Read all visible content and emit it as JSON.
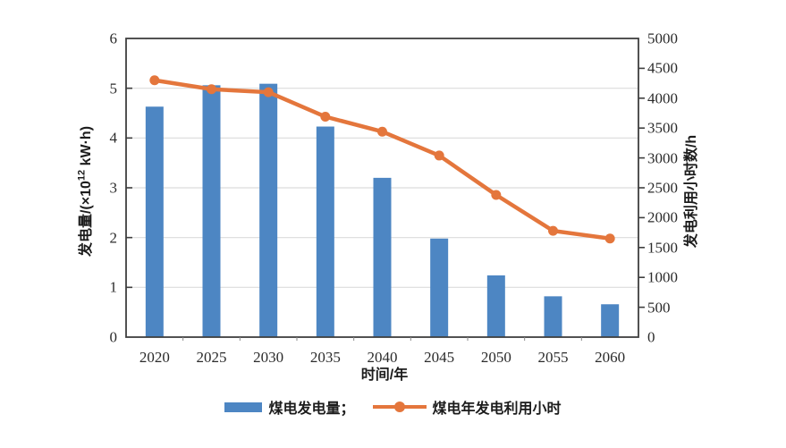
{
  "chart": {
    "y_left_title": {
      "prefix": "发电量/(×10",
      "sup": "12",
      "suffix": " kW·h)"
    },
    "y_right_title": "发电利用小时数/h",
    "x_title": "时间/年",
    "legend": {
      "bar_label": "煤电发电量；",
      "line_label": "煤电年发电利用小时"
    }
  },
  "colors": {
    "bar": "#4d86c3",
    "line": "#e4763c",
    "grid": "#dcdcdc",
    "axis": "#3f3f3f",
    "minor_tick": "#8a8a8a",
    "text": "#2b2b2b"
  },
  "chart_data": {
    "type": "combo",
    "categories": [
      "2020",
      "2025",
      "2030",
      "2035",
      "2040",
      "2045",
      "2050",
      "2055",
      "2060"
    ],
    "series": [
      {
        "name": "煤电发电量",
        "type": "bar",
        "axis": "left",
        "values": [
          4.63,
          5.06,
          5.09,
          4.23,
          3.2,
          1.98,
          1.24,
          0.82,
          0.66
        ]
      },
      {
        "name": "煤电年发电利用小时",
        "type": "line",
        "axis": "right",
        "values": [
          4300,
          4150,
          4100,
          3690,
          3440,
          3040,
          2380,
          1780,
          1650
        ]
      }
    ],
    "left_axis": {
      "label": "发电量/(×10¹² kW·h)",
      "min": 0,
      "max": 6,
      "tick_step": 1
    },
    "right_axis": {
      "label": "发电利用小时数/h",
      "min": 0,
      "max": 5000,
      "tick_step": 500
    },
    "x_label": "时间/年",
    "grid": true,
    "legend_position": "bottom"
  }
}
